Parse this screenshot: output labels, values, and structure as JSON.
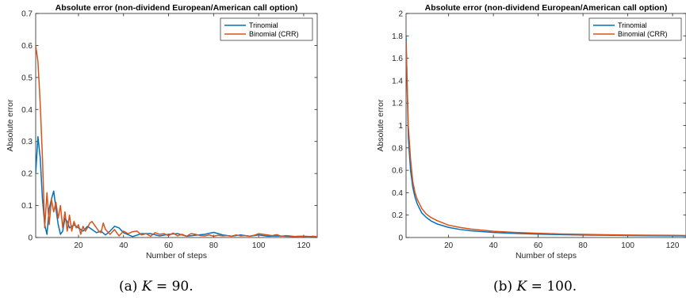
{
  "chart_data": [
    {
      "type": "line",
      "title": "Absolute error (non-dividend European/American call option)",
      "xlabel": "Number of steps",
      "ylabel": "Absolute error",
      "xlim": [
        1,
        126
      ],
      "ylim": [
        0,
        0.7
      ],
      "xticks": [
        20,
        40,
        60,
        80,
        100,
        120
      ],
      "yticks": [
        0,
        0.1,
        0.2,
        0.3,
        0.4,
        0.5,
        0.6,
        0.7
      ],
      "ytick_labels": [
        "0",
        "0.1",
        "0.2",
        "0.3",
        "0.4",
        "0.5",
        "0.6",
        "0.7"
      ],
      "legend_position": "top-right",
      "caption": {
        "prefix": "(a) ",
        "var": "K",
        "rest": " = 90."
      },
      "series": [
        {
          "name": "Trinomial",
          "color": "#0072BD",
          "x": [
            1,
            2,
            3,
            4,
            5,
            6,
            7,
            8,
            9,
            10,
            11,
            12,
            13,
            14,
            15,
            16,
            18,
            20,
            22,
            24,
            26,
            28,
            30,
            32,
            34,
            36,
            38,
            40,
            44,
            48,
            52,
            56,
            60,
            64,
            68,
            72,
            76,
            80,
            84,
            88,
            92,
            96,
            100,
            104,
            108,
            112,
            116,
            120,
            126
          ],
          "values": [
            0.2,
            0.315,
            0.25,
            0.12,
            0.04,
            0.01,
            0.09,
            0.12,
            0.145,
            0.09,
            0.04,
            0.01,
            0.02,
            0.06,
            0.05,
            0.03,
            0.04,
            0.03,
            0.02,
            0.035,
            0.025,
            0.015,
            0.02,
            0.008,
            0.02,
            0.035,
            0.03,
            0.015,
            0.003,
            0.012,
            0.012,
            0.005,
            0.01,
            0.012,
            0.004,
            0.007,
            0.01,
            0.016,
            0.008,
            0.004,
            0.008,
            0.004,
            0.008,
            0.004,
            0.005,
            0.004,
            0.003,
            0.004,
            0.002
          ]
        },
        {
          "name": "Binomial (CRR)",
          "color": "#D95319",
          "x": [
            1,
            2,
            3,
            4,
            5,
            6,
            7,
            8,
            9,
            10,
            11,
            12,
            13,
            14,
            15,
            16,
            17,
            18,
            19,
            20,
            21,
            22,
            23,
            24,
            25,
            26,
            27,
            28,
            29,
            30,
            31,
            32,
            34,
            36,
            38,
            40,
            42,
            44,
            46,
            48,
            50,
            52,
            54,
            56,
            58,
            60,
            62,
            64,
            66,
            68,
            70,
            72,
            74,
            76,
            78,
            80,
            82,
            84,
            86,
            88,
            90,
            92,
            94,
            96,
            98,
            100,
            102,
            104,
            106,
            108,
            110,
            112,
            114,
            116,
            118,
            120,
            122,
            124,
            126
          ],
          "values": [
            0.6,
            0.55,
            0.42,
            0.25,
            0.03,
            0.14,
            0.04,
            0.12,
            0.08,
            0.11,
            0.06,
            0.1,
            0.03,
            0.08,
            0.02,
            0.07,
            0.02,
            0.05,
            0.03,
            0.04,
            0.01,
            0.035,
            0.02,
            0.03,
            0.045,
            0.05,
            0.04,
            0.03,
            0.02,
            0.015,
            0.045,
            0.025,
            0.01,
            0.025,
            0.005,
            0.02,
            0.012,
            0.018,
            0.02,
            0.008,
            0.012,
            0.004,
            0.015,
            0.01,
            0.012,
            0.006,
            0.014,
            0.005,
            0.01,
            0.004,
            0.012,
            0.01,
            0.006,
            0.005,
            0.008,
            0.004,
            0.007,
            0.005,
            0.006,
            0.004,
            0.008,
            0.005,
            0.006,
            0.004,
            0.007,
            0.012,
            0.01,
            0.008,
            0.006,
            0.009,
            0.004,
            0.006,
            0.005,
            0.003,
            0.004,
            0.003,
            0.002,
            0.004,
            0.002
          ]
        }
      ]
    },
    {
      "type": "line",
      "title": "Absolute error (non-dividend European/American call option)",
      "xlabel": "Number of steps",
      "ylabel": "Absolute error",
      "xlim": [
        1,
        126
      ],
      "ylim": [
        0,
        2
      ],
      "xticks": [
        20,
        40,
        60,
        80,
        100,
        120
      ],
      "yticks": [
        0,
        0.2,
        0.4,
        0.6,
        0.8,
        1,
        1.2,
        1.4,
        1.6,
        1.8,
        2
      ],
      "ytick_labels": [
        "0",
        "0.2",
        "0.4",
        "0.6",
        "0.8",
        "1",
        "1.2",
        "1.4",
        "1.6",
        "1.8",
        "2"
      ],
      "legend_position": "top-right",
      "caption": {
        "prefix": "(b) ",
        "var": "K",
        "rest": " = 100."
      },
      "series": [
        {
          "name": "Trinomial",
          "color": "#0072BD",
          "x": [
            1,
            2,
            3,
            4,
            5,
            6,
            8,
            10,
            12,
            15,
            20,
            25,
            30,
            40,
            50,
            60,
            70,
            80,
            90,
            100,
            110,
            120,
            126
          ],
          "values": [
            1.8,
            0.9,
            0.6,
            0.45,
            0.36,
            0.3,
            0.22,
            0.18,
            0.15,
            0.12,
            0.09,
            0.072,
            0.06,
            0.045,
            0.036,
            0.03,
            0.026,
            0.022,
            0.02,
            0.018,
            0.016,
            0.015,
            0.014
          ]
        },
        {
          "name": "Binomial (CRR)",
          "color": "#D95319",
          "x": [
            1,
            2,
            3,
            4,
            5,
            6,
            8,
            10,
            12,
            15,
            20,
            25,
            30,
            40,
            50,
            60,
            70,
            80,
            90,
            100,
            110,
            120,
            126
          ],
          "values": [
            1.75,
            1.0,
            0.7,
            0.5,
            0.4,
            0.34,
            0.26,
            0.21,
            0.18,
            0.15,
            0.11,
            0.09,
            0.075,
            0.056,
            0.045,
            0.038,
            0.032,
            0.028,
            0.025,
            0.022,
            0.02,
            0.019,
            0.018
          ]
        }
      ]
    }
  ]
}
